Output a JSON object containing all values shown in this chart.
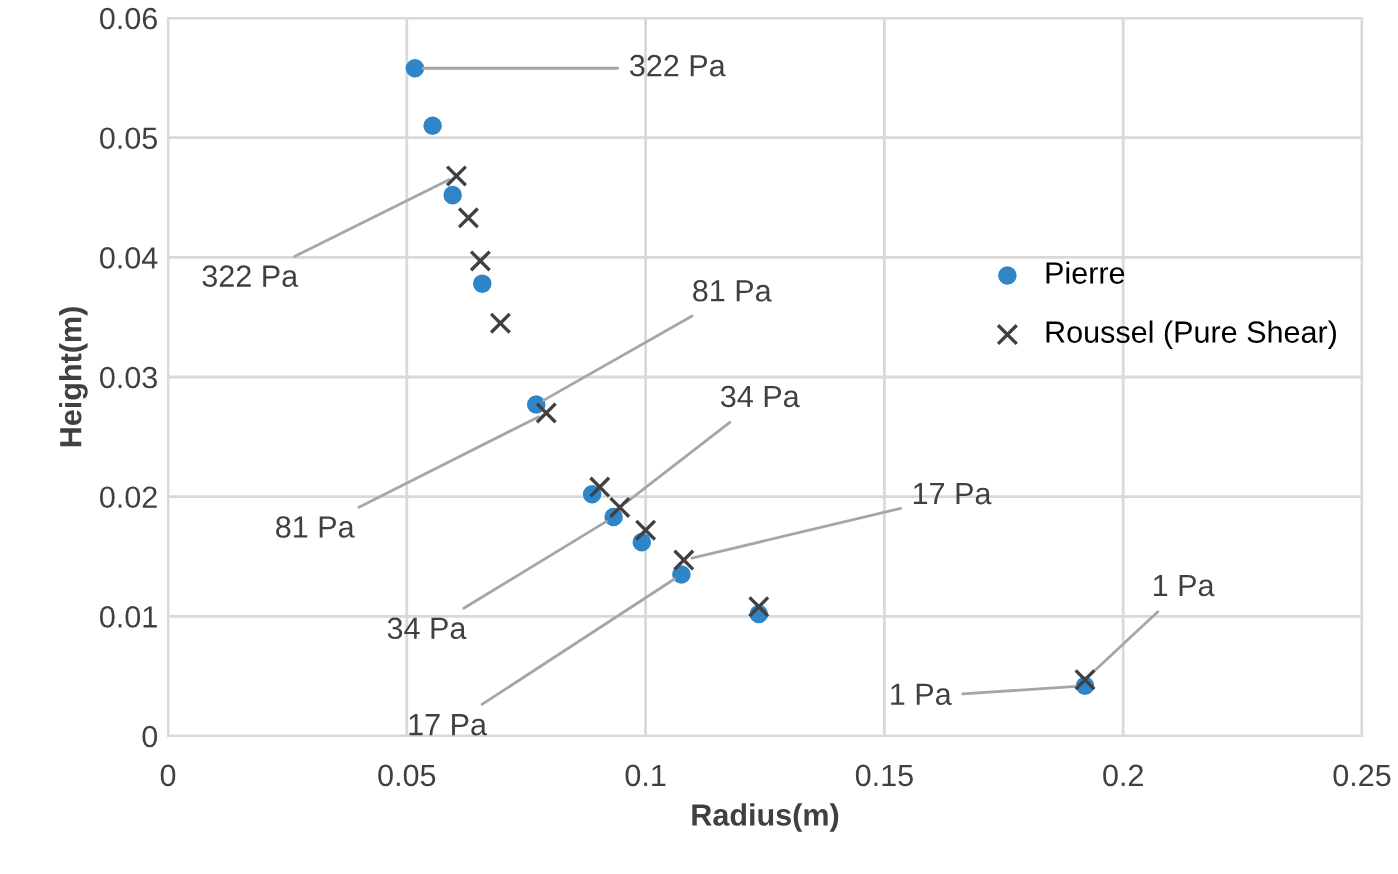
{
  "chart_data": {
    "type": "scatter",
    "xlabel": "Radius(m)",
    "ylabel": "Height(m)",
    "xlim": [
      0,
      0.25
    ],
    "xticks": [
      0,
      0.05,
      0.1,
      0.15,
      0.2,
      0.25
    ],
    "ylim": [
      0,
      0.06
    ],
    "yticks": [
      0,
      0.01,
      0.02,
      0.03,
      0.04,
      0.05,
      0.06
    ],
    "grid": true,
    "legend": "right",
    "series": [
      {
        "name": "Pierre",
        "color": "#2e86c8",
        "marker": "circle",
        "x": [
          0.0517,
          0.0554,
          0.0596,
          0.0658,
          0.0771,
          0.0888,
          0.0933,
          0.0992,
          0.1075,
          0.1237,
          0.192
        ],
        "values": [
          0.0558,
          0.051,
          0.0452,
          0.0378,
          0.0277,
          0.0202,
          0.0183,
          0.0162,
          0.0135,
          0.0102,
          0.0042
        ]
      },
      {
        "name": "Roussel (Pure Shear)",
        "color": "#404040",
        "marker": "cross",
        "x": [
          0.0604,
          0.0629,
          0.0654,
          0.0696,
          0.0792,
          0.0904,
          0.0946,
          0.1,
          0.108,
          0.1237,
          0.192
        ],
        "values": [
          0.0468,
          0.0433,
          0.0397,
          0.0345,
          0.027,
          0.0208,
          0.0191,
          0.0172,
          0.0147,
          0.0108,
          0.0047
        ]
      }
    ],
    "annotations": [
      {
        "text": "322 Pa",
        "x": 0.0517,
        "y": 0.0558
      },
      {
        "text": "322 Pa",
        "x": 0.0604,
        "y": 0.0468
      },
      {
        "text": "81 Pa",
        "x": 0.0771,
        "y": 0.0277
      },
      {
        "text": "81 Pa",
        "x": 0.0792,
        "y": 0.027
      },
      {
        "text": "34 Pa",
        "x": 0.0946,
        "y": 0.0191
      },
      {
        "text": "34 Pa",
        "x": 0.0933,
        "y": 0.0183
      },
      {
        "text": "17 Pa",
        "x": 0.108,
        "y": 0.0147
      },
      {
        "text": "17 Pa",
        "x": 0.1075,
        "y": 0.0135
      },
      {
        "text": "1 Pa",
        "x": 0.192,
        "y": 0.0047
      },
      {
        "text": "1 Pa",
        "x": 0.192,
        "y": 0.0042
      }
    ]
  }
}
